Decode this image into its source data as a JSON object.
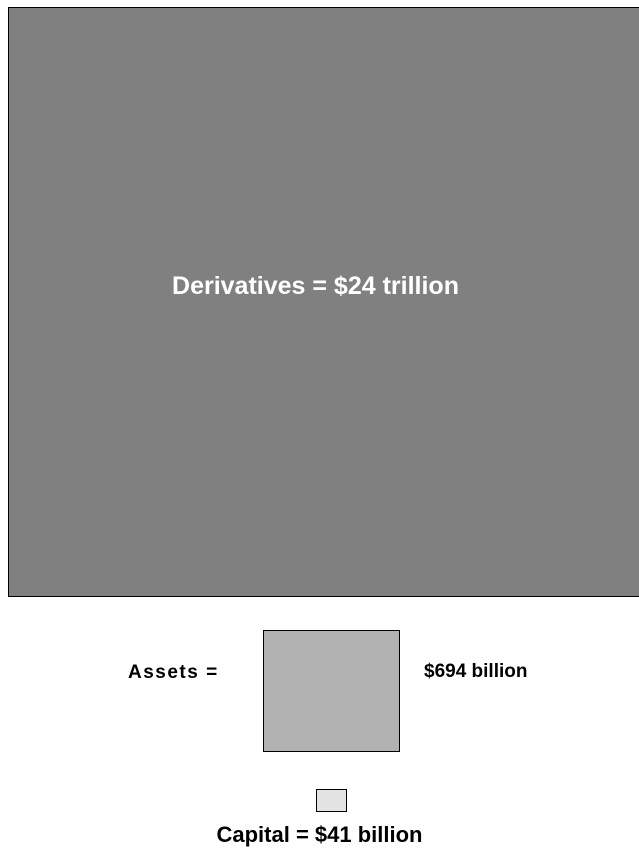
{
  "derivatives": {
    "label": "Derivatives = $24 trillion",
    "value_trillion": 24,
    "color": "#808080"
  },
  "assets": {
    "label_prefix": "Assets =",
    "value_label": "$694 billion",
    "value_billion": 694,
    "color": "#b2b2b2"
  },
  "capital": {
    "label": "Capital = $41 billion",
    "value_billion": 41,
    "color": "#e3e3e3"
  }
}
